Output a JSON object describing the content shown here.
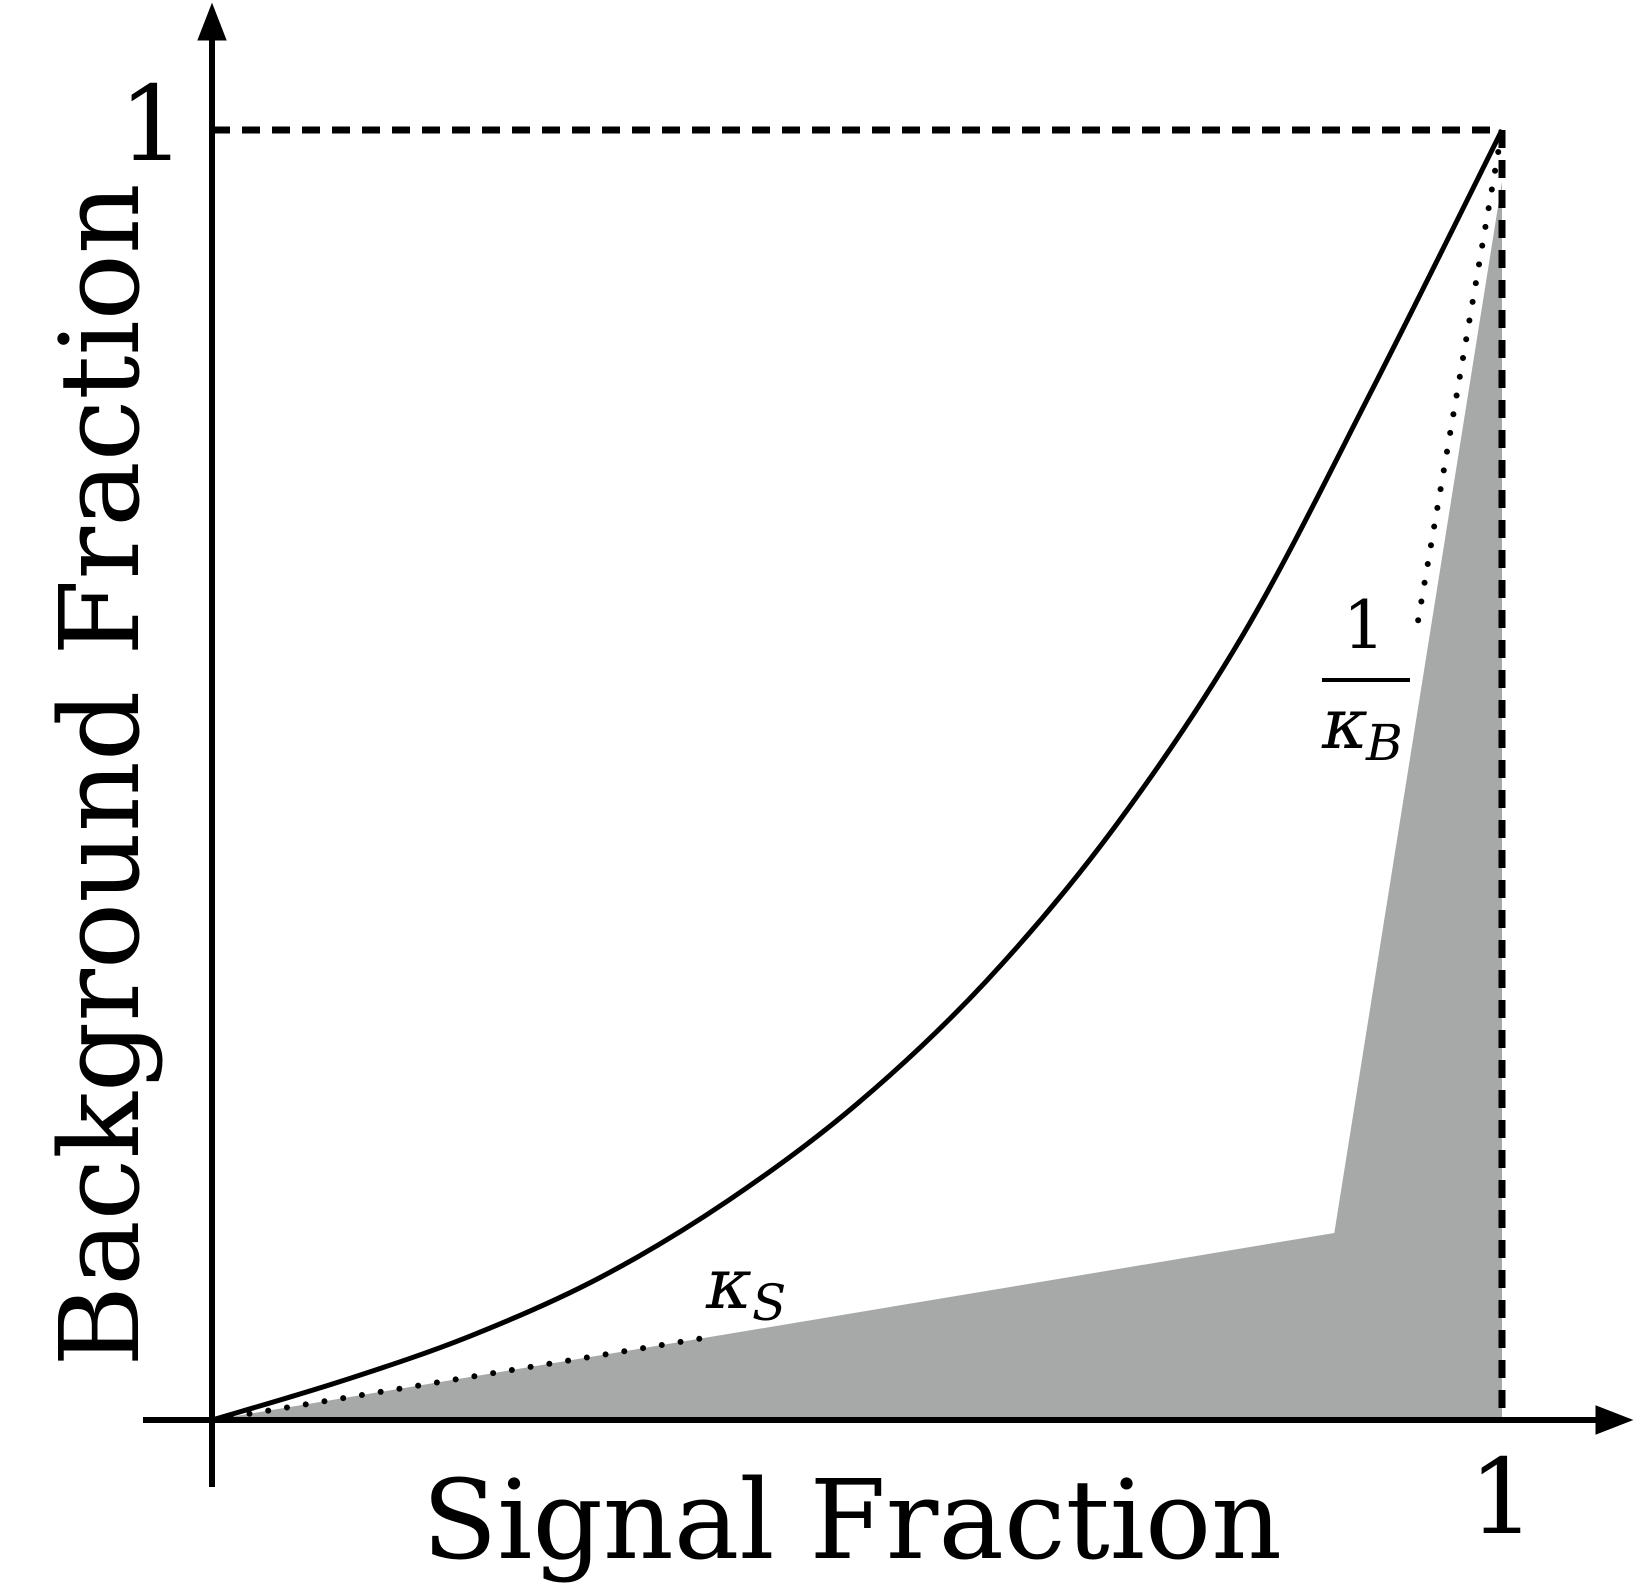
{
  "figure": {
    "x_axis_label": "Signal Fraction",
    "y_axis_label": "Background Fraction",
    "x_tick_label": "1",
    "y_tick_label": "1",
    "kappa_s_label": {
      "symbol": "κ",
      "sub": "S"
    },
    "kappa_b_label": {
      "numerator": "1",
      "symbol": "κ",
      "sub": "B"
    }
  },
  "colors": {
    "ink": "#000000",
    "shaded_region": "#a6a9a8",
    "background": "#ffffff"
  },
  "curve": {
    "shape": "convex curve from origin (0,0) to (1,1)",
    "points": [
      [
        0,
        0
      ],
      [
        0.1,
        0.03
      ],
      [
        0.2,
        0.065
      ],
      [
        0.3,
        0.11
      ],
      [
        0.4,
        0.17
      ],
      [
        0.5,
        0.245
      ],
      [
        0.6,
        0.34
      ],
      [
        0.7,
        0.46
      ],
      [
        0.8,
        0.61
      ],
      [
        0.9,
        0.8
      ],
      [
        1,
        1
      ]
    ]
  },
  "shaded_polygon": {
    "vertices": [
      [
        0,
        0
      ],
      [
        0.39,
        0.065
      ],
      [
        0.87,
        0.145
      ],
      [
        1,
        0.96
      ],
      [
        1,
        0
      ]
    ]
  },
  "tangent_lines": {
    "kappa_s": {
      "from": [
        0,
        0
      ],
      "to": [
        0.39,
        0.065
      ],
      "style": "dotted"
    },
    "kappa_b": {
      "from": [
        0.935,
        0.62
      ],
      "to": [
        1,
        1
      ],
      "style": "dotted"
    }
  },
  "reference_lines": {
    "y_equals_one": {
      "style": "dashed"
    },
    "x_equals_one": {
      "style": "dashed"
    }
  }
}
